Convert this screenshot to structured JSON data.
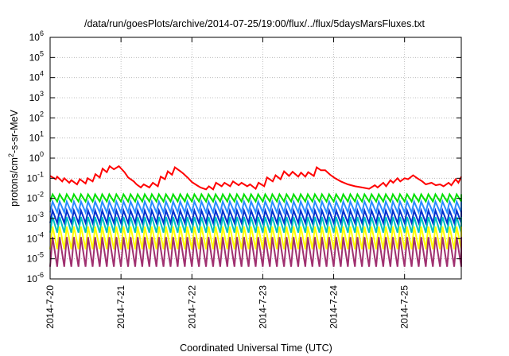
{
  "chart_data": {
    "type": "line",
    "title": "/data/run/goesPlots/archive/2014-07-25/19:00/flux/../flux/5daysMarsFluxes.txt",
    "xlabel": "Coordinated Universal Time (UTC)",
    "ylabel_prefix": "protons/cm",
    "ylabel_sup": "2",
    "ylabel_suffix": "-s-sr-MeV",
    "yscale": "log",
    "ylim": [
      1e-06,
      1000000.0
    ],
    "y_ticks": [
      {
        "base": "10",
        "exp": "-6",
        "value": 1e-06
      },
      {
        "base": "10",
        "exp": "-5",
        "value": 1e-05
      },
      {
        "base": "10",
        "exp": "-4",
        "value": 0.0001
      },
      {
        "base": "10",
        "exp": "-3",
        "value": 0.001
      },
      {
        "base": "10",
        "exp": "-2",
        "value": 0.01
      },
      {
        "base": "10",
        "exp": "-1",
        "value": 0.1
      },
      {
        "base": "10",
        "exp": "0",
        "value": 1
      },
      {
        "base": "10",
        "exp": "1",
        "value": 10
      },
      {
        "base": "10",
        "exp": "2",
        "value": 100
      },
      {
        "base": "10",
        "exp": "3",
        "value": 1000
      },
      {
        "base": "10",
        "exp": "4",
        "value": 10000
      },
      {
        "base": "10",
        "exp": "5",
        "value": 100000
      },
      {
        "base": "10",
        "exp": "6",
        "value": 1000000
      }
    ],
    "x_ticks": [
      {
        "label": "2014-7-20",
        "day": 20
      },
      {
        "label": "2014-7-21",
        "day": 21
      },
      {
        "label": "2014-7-22",
        "day": 22
      },
      {
        "label": "2014-7-23",
        "day": 23
      },
      {
        "label": "2014-7-24",
        "day": 24
      },
      {
        "label": "2014-7-25",
        "day": 25
      }
    ],
    "xlim": [
      20,
      25.8
    ],
    "grid": true,
    "legend": "none",
    "colors": {
      "red": "#ff0000",
      "green": "#00e000",
      "blue_light": "#2a8cff",
      "blue_dark": "#0030d0",
      "cyan": "#00c0c0",
      "yellow": "#ffff00",
      "magenta": "#a03070",
      "grid": "#b0b0b0"
    },
    "series": [
      {
        "color": "red",
        "x": [
          20.0,
          20.08,
          20.1,
          20.17,
          20.2,
          20.27,
          20.3,
          20.38,
          20.42,
          20.5,
          20.53,
          20.6,
          20.64,
          20.7,
          20.74,
          20.8,
          20.84,
          20.9,
          20.97,
          21.05,
          21.1,
          21.18,
          21.22,
          21.28,
          21.32,
          21.4,
          21.45,
          21.52,
          21.56,
          21.62,
          21.66,
          21.72,
          21.76,
          21.84,
          21.88,
          21.95,
          22.0,
          22.07,
          22.12,
          22.2,
          22.24,
          22.3,
          22.34,
          22.42,
          22.46,
          22.54,
          22.58,
          22.66,
          22.7,
          22.78,
          22.82,
          22.9,
          22.94,
          23.02,
          23.06,
          23.14,
          23.18,
          23.25,
          23.3,
          23.37,
          23.42,
          23.5,
          23.54,
          23.6,
          23.64,
          23.72,
          23.76,
          23.82,
          23.88,
          23.95,
          24.02,
          24.1,
          24.2,
          24.3,
          24.4,
          24.5,
          24.58,
          24.62,
          24.7,
          24.74,
          24.8,
          24.84,
          24.9,
          24.94,
          25.0,
          25.05,
          25.12,
          25.18,
          25.25,
          25.3,
          25.38,
          25.44,
          25.5,
          25.55,
          25.62,
          25.66,
          25.72,
          25.76,
          25.8
        ],
        "y": [
          0.13,
          0.09,
          0.12,
          0.07,
          0.1,
          0.06,
          0.08,
          0.05,
          0.09,
          0.055,
          0.1,
          0.07,
          0.16,
          0.11,
          0.3,
          0.2,
          0.4,
          0.28,
          0.4,
          0.2,
          0.11,
          0.07,
          0.05,
          0.035,
          0.05,
          0.035,
          0.06,
          0.04,
          0.12,
          0.09,
          0.22,
          0.15,
          0.35,
          0.22,
          0.17,
          0.1,
          0.065,
          0.045,
          0.035,
          0.028,
          0.04,
          0.028,
          0.06,
          0.04,
          0.06,
          0.04,
          0.07,
          0.045,
          0.06,
          0.04,
          0.05,
          0.03,
          0.06,
          0.04,
          0.11,
          0.07,
          0.14,
          0.09,
          0.22,
          0.13,
          0.21,
          0.12,
          0.19,
          0.12,
          0.2,
          0.13,
          0.35,
          0.25,
          0.25,
          0.15,
          0.1,
          0.07,
          0.05,
          0.04,
          0.035,
          0.03,
          0.045,
          0.035,
          0.06,
          0.04,
          0.08,
          0.06,
          0.1,
          0.07,
          0.1,
          0.09,
          0.14,
          0.1,
          0.07,
          0.05,
          0.06,
          0.045,
          0.05,
          0.04,
          0.06,
          0.045,
          0.09,
          0.06,
          0.12
        ]
      },
      {
        "color": "green",
        "period": 0.1,
        "hi": 0.016,
        "lo": 0.007
      },
      {
        "color": "blue_light",
        "period": 0.1,
        "hi": 0.007,
        "lo": 0.002
      },
      {
        "color": "blue_dark",
        "period": 0.1,
        "hi": 0.0025,
        "lo": 0.0006
      },
      {
        "color": "cyan",
        "period": 0.1,
        "hi": 0.0012,
        "lo": 0.0002
      },
      {
        "color": "yellow",
        "period": 0.1,
        "hi": 0.0004,
        "lo": 3e-05
      },
      {
        "color": "magenta",
        "period": 0.1,
        "hi": 0.00012,
        "lo": 4e-06
      }
    ]
  }
}
